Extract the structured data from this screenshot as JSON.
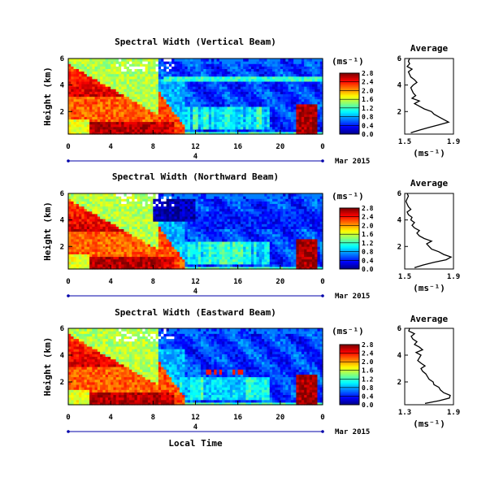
{
  "colors": {
    "jet": [
      "#00007f",
      "#0000ff",
      "#007fff",
      "#00ffff",
      "#7fff7f",
      "#ffff00",
      "#ff7f00",
      "#ff0000",
      "#7f0000"
    ],
    "missing": "#ffffff",
    "axis": "#000000",
    "date_bar": "#0000aa"
  },
  "chart_data": [
    {
      "type": "heatmap",
      "title": "Spectral Width (Vertical Beam)",
      "xlabel": "",
      "ylabel": "Height (km)",
      "x_ticks": [
        "0",
        "4",
        "8",
        "12",
        "16",
        "20",
        "0"
      ],
      "xlim": [
        0,
        24
      ],
      "y_ticks": [
        "2",
        "4",
        "6"
      ],
      "ylim": [
        0.3,
        6
      ],
      "date_label": "Mar 2015",
      "date_tick": "4",
      "colorbar": {
        "unit": "(ms⁻¹)",
        "ticks": [
          "0.0",
          "0.4",
          "0.8",
          "1.2",
          "1.6",
          "2.0",
          "2.4",
          "2.8"
        ],
        "range": [
          0,
          2.8
        ]
      },
      "average_profile": {
        "title": "Average",
        "xlabel": "(ms⁻¹)",
        "x_ticks": [
          "1.5",
          "1.9"
        ],
        "xlim": [
          1.5,
          1.9
        ],
        "y_ticks": [
          "2",
          "4",
          "6"
        ],
        "ylim": [
          0.3,
          6
        ],
        "height_km": [
          0.4,
          0.6,
          0.8,
          1.0,
          1.2,
          1.4,
          1.6,
          1.8,
          2.0,
          2.2,
          2.4,
          2.6,
          2.8,
          3.0,
          3.2,
          3.4,
          3.6,
          3.8,
          4.0,
          4.2,
          4.4,
          4.6,
          4.8,
          5.0,
          5.2,
          5.4,
          5.6,
          5.8,
          6.0
        ],
        "width_ms": [
          1.55,
          1.62,
          1.7,
          1.78,
          1.86,
          1.82,
          1.78,
          1.74,
          1.72,
          1.66,
          1.62,
          1.58,
          1.62,
          1.56,
          1.59,
          1.57,
          1.56,
          1.55,
          1.57,
          1.6,
          1.58,
          1.55,
          1.54,
          1.53,
          1.56,
          1.52,
          1.54,
          1.53,
          1.54
        ]
      }
    },
    {
      "type": "heatmap",
      "title": "Spectral Width (Northward Beam)",
      "xlabel": "",
      "ylabel": "Height (km)",
      "x_ticks": [
        "0",
        "4",
        "8",
        "12",
        "16",
        "20",
        "0"
      ],
      "xlim": [
        0,
        24
      ],
      "y_ticks": [
        "2",
        "4",
        "6"
      ],
      "ylim": [
        0.3,
        6
      ],
      "date_label": "Mar 2015",
      "date_tick": "4",
      "colorbar": {
        "unit": "(ms⁻¹)",
        "ticks": [
          "0.0",
          "0.4",
          "0.8",
          "1.2",
          "1.6",
          "2.0",
          "2.4",
          "2.8"
        ],
        "range": [
          0,
          2.8
        ]
      },
      "average_profile": {
        "title": "Average",
        "xlabel": "(ms⁻¹)",
        "x_ticks": [
          "1.5",
          "1.9"
        ],
        "xlim": [
          1.5,
          1.9
        ],
        "y_ticks": [
          "2",
          "4",
          "6"
        ],
        "ylim": [
          0.3,
          6
        ],
        "height_km": [
          0.4,
          0.6,
          0.8,
          1.0,
          1.2,
          1.4,
          1.6,
          1.8,
          2.0,
          2.2,
          2.4,
          2.6,
          2.8,
          3.0,
          3.2,
          3.4,
          3.6,
          3.8,
          4.0,
          4.2,
          4.4,
          4.6,
          4.8,
          5.0,
          5.2,
          5.4,
          5.6,
          5.8,
          6.0
        ],
        "width_ms": [
          1.58,
          1.65,
          1.74,
          1.84,
          1.88,
          1.82,
          1.78,
          1.72,
          1.7,
          1.68,
          1.72,
          1.66,
          1.62,
          1.6,
          1.62,
          1.58,
          1.56,
          1.58,
          1.55,
          1.56,
          1.53,
          1.52,
          1.55,
          1.53,
          1.52,
          1.51,
          1.52,
          1.53,
          1.52
        ]
      }
    },
    {
      "type": "heatmap",
      "title": "Spectral Width (Eastward Beam)",
      "xlabel": "Local Time",
      "ylabel": "Height (km)",
      "x_ticks": [
        "0",
        "4",
        "8",
        "12",
        "16",
        "20",
        "0"
      ],
      "xlim": [
        0,
        24
      ],
      "y_ticks": [
        "2",
        "4",
        "6"
      ],
      "ylim": [
        0.3,
        6
      ],
      "date_label": "Mar 2015",
      "date_tick": "4",
      "colorbar": {
        "unit": "(ms⁻¹)",
        "ticks": [
          "0.0",
          "0.4",
          "0.8",
          "1.2",
          "1.6",
          "2.0",
          "2.4",
          "2.8"
        ],
        "range": [
          0,
          2.8
        ]
      },
      "average_profile": {
        "title": "Average",
        "xlabel": "(ms⁻¹)",
        "x_ticks": [
          "1.3",
          "1.9"
        ],
        "xlim": [
          1.3,
          1.9
        ],
        "y_ticks": [
          "2",
          "4",
          "6"
        ],
        "ylim": [
          0.3,
          6
        ],
        "height_km": [
          0.4,
          0.6,
          0.8,
          1.0,
          1.2,
          1.4,
          1.6,
          1.8,
          2.0,
          2.2,
          2.4,
          2.6,
          2.8,
          3.0,
          3.2,
          3.4,
          3.6,
          3.8,
          4.0,
          4.2,
          4.4,
          4.6,
          4.8,
          5.0,
          5.2,
          5.4,
          5.6,
          5.8,
          6.0
        ],
        "width_ms": [
          1.55,
          1.72,
          1.85,
          1.86,
          1.78,
          1.74,
          1.72,
          1.66,
          1.65,
          1.6,
          1.58,
          1.56,
          1.52,
          1.5,
          1.55,
          1.5,
          1.46,
          1.48,
          1.5,
          1.44,
          1.52,
          1.48,
          1.42,
          1.45,
          1.4,
          1.38,
          1.42,
          1.35,
          1.36
        ]
      }
    }
  ]
}
